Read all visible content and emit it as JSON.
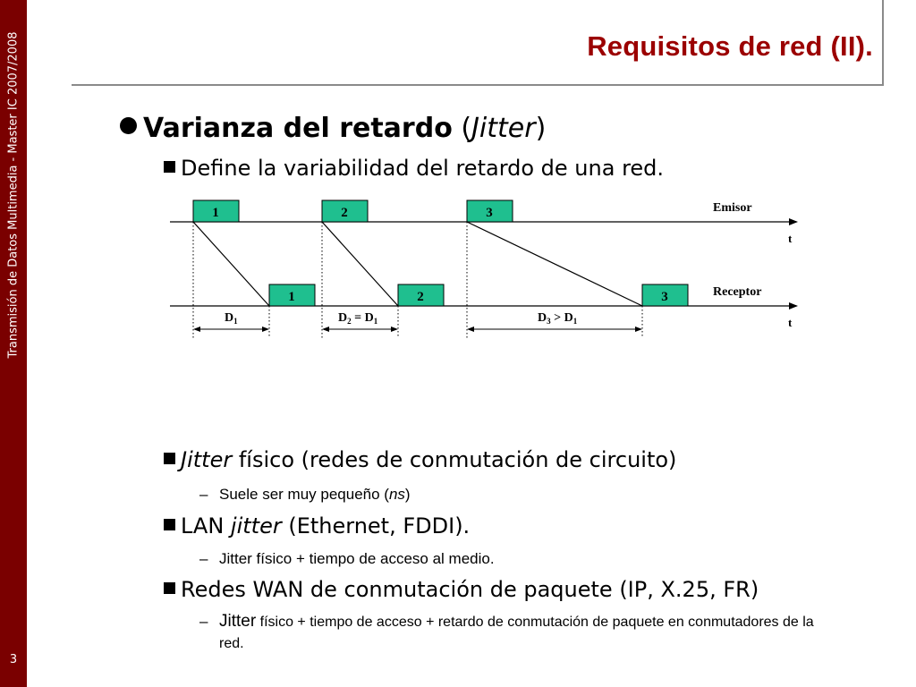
{
  "sidebar": {
    "course_text": "Transmisión de Datos Multimedia - Master IC 2007/2008",
    "page_number": "3",
    "color": "#7a0000"
  },
  "title": "Requisitos de red (II).",
  "title_color": "#9b0000",
  "main_bullet": {
    "bold": "Varianza del retardo",
    "rest_open": " (",
    "italic": "Jitter",
    "rest_close": ")"
  },
  "sub1": "Define la variabilidad del retardo de una red.",
  "diagram": {
    "packet_color": "#1fbf8f",
    "sender_label": "Emisor",
    "receiver_label": "Receptor",
    "t_label": "t",
    "packets_sent": [
      "1",
      "2",
      "3"
    ],
    "packets_received": [
      "1",
      "2",
      "3"
    ],
    "delays": {
      "d1": {
        "base": "D",
        "sub": "1"
      },
      "d2": {
        "base": "D",
        "sub": "2",
        "op": " = ",
        "base2": "D",
        "sub2": "1"
      },
      "d3": {
        "base": "D",
        "sub": "3",
        "op": " > ",
        "base2": "D",
        "sub2": "1"
      }
    }
  },
  "sub2": {
    "italic": "Jitter",
    "rest": " físico (redes de conmutación de circuito)"
  },
  "sub2_detail": {
    "text": "Suele ser muy pequeño (",
    "italic": "ns",
    "close": ")"
  },
  "sub3": {
    "pre": "LAN ",
    "italic": "jitter",
    "rest": " (Ethernet, FDDI)."
  },
  "sub3_detail": "Jitter físico + tiempo de acceso al medio.",
  "sub4": "Redes WAN de conmutación de paquete (IP, X.25, FR)",
  "sub4_detail": {
    "first": "Jitter",
    "rest_line1": " físico + tiempo de acceso + retardo de conmutación de paquete en conmutadores de la",
    "line2": "red."
  }
}
